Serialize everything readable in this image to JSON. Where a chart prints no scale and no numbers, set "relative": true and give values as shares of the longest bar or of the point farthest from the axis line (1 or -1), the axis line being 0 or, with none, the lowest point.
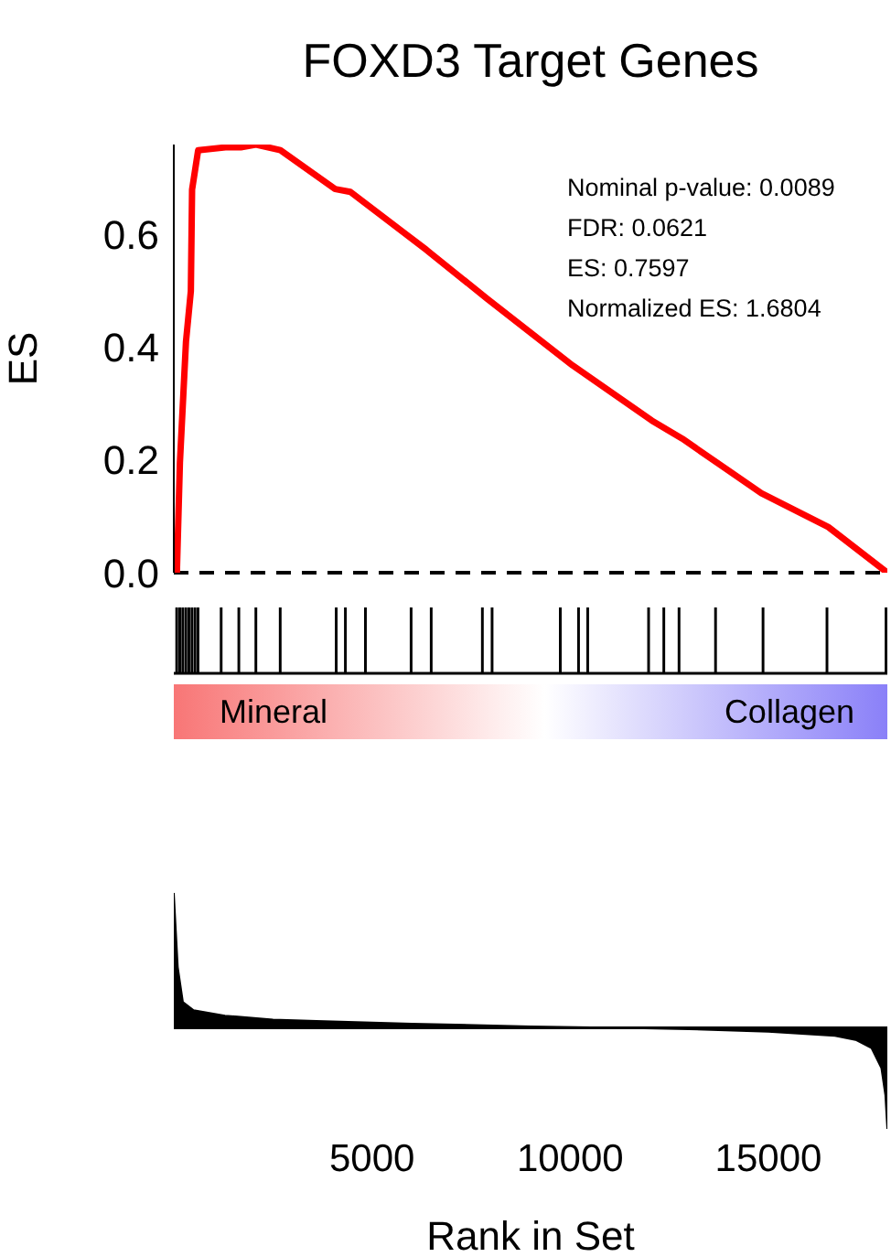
{
  "chart_data": [
    {
      "type": "line",
      "title": "FOXD3 Target Genes",
      "ylabel": "ES",
      "xlim": [
        0,
        18000
      ],
      "xticks": [
        5000,
        10000,
        15000
      ],
      "ylim": [
        0,
        0.76
      ],
      "yticks": [
        {
          "value": 0,
          "label": "0.0"
        },
        0.2,
        0.4,
        0.6
      ],
      "tick_labels": "y",
      "marker": "none",
      "line_style": "solid",
      "x": [
        77,
        154,
        307,
        430,
        461,
        614,
        1306,
        1690,
        2074,
        2688,
        4070,
        4454,
        6374,
        7910,
        10060,
        12058,
        12826,
        14822,
        16512,
        18000
      ],
      "series": [
        {
          "color": "#ff0000",
          "values": [
            0,
            0.195,
            0.41,
            0.5,
            0.68,
            0.75,
            0.755,
            0.755,
            0.76,
            0.75,
            0.681,
            0.676,
            0.573,
            0.486,
            0.368,
            0.27,
            0.238,
            0.141,
            0.081,
            0
          ]
        }
      ],
      "ref_lines": [
        {
          "axis": "y",
          "value": 0,
          "color": "#000000",
          "line_style": "dashed"
        }
      ],
      "annotations": [
        "Nominal p-value: 0.0089",
        "FDR: 0.0621",
        "ES: 0.7597",
        "Normalized ES: 1.6804"
      ]
    },
    {
      "type": "bar",
      "relative": true,
      "tick_labels": false,
      "xlim": [
        0,
        18000
      ],
      "xticks": [
        5000,
        10000,
        15000
      ],
      "x": [
        77,
        154,
        230,
        307,
        384,
        461,
        538,
        614,
        1198,
        1644,
        2074,
        2688,
        4101,
        4332,
        4838,
        5990,
        6497,
        7788,
        8033,
        9754,
        10214,
        10445,
        11981,
        12365,
        12749,
        13670,
        14868,
        16481,
        17971
      ],
      "series": [
        {
          "color": "#000000",
          "values": [
            1,
            1,
            1,
            1,
            1,
            1,
            1,
            1,
            1,
            1,
            1,
            1,
            1,
            1,
            1,
            1,
            1,
            1,
            1,
            1,
            1,
            1,
            1,
            1,
            1,
            1,
            1,
            1,
            1
          ]
        }
      ],
      "annotations": [
        "Mineral",
        "Collagen"
      ]
    },
    {
      "type": "area",
      "relative": true,
      "tick_labels": "x",
      "xlabel": "Rank in Set",
      "xlim": [
        0,
        18000
      ],
      "xticks": [
        5000,
        10000,
        15000
      ],
      "x": [
        0,
        100,
        230,
        500,
        1290,
        2500,
        3600,
        6000,
        9000,
        11290,
        13000,
        15000,
        16680,
        17200,
        17600,
        17850,
        17950,
        18000
      ],
      "series": [
        {
          "color": "#000000",
          "values": [
            1,
            0.45,
            0.19,
            0.13,
            0.09,
            0.06,
            0.05,
            0.03,
            0.01,
            0,
            -0.01,
            -0.03,
            -0.06,
            -0.09,
            -0.15,
            -0.3,
            -0.5,
            -0.75
          ]
        }
      ]
    }
  ]
}
